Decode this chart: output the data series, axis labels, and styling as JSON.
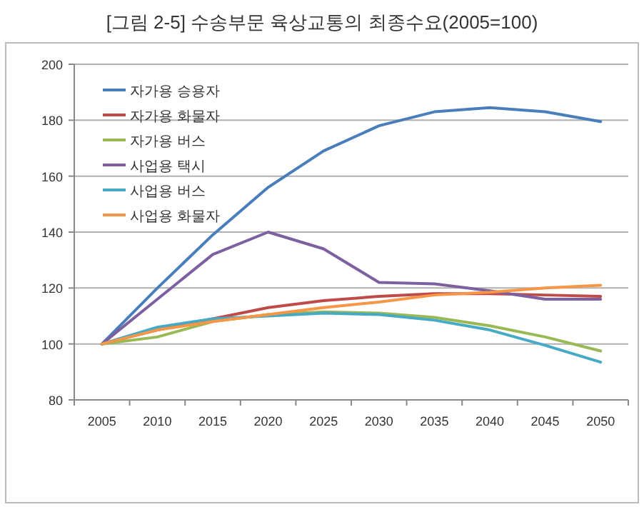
{
  "chart_data": {
    "type": "line",
    "title": "[그림 2-5] 수송부문 육상교통의 최종수요(2005=100)",
    "categories": [
      "2005",
      "2010",
      "2015",
      "2020",
      "2025",
      "2030",
      "2035",
      "2040",
      "2045",
      "2050"
    ],
    "series": [
      {
        "name": "자가용 승용자",
        "color": "#4a7ebb",
        "values": [
          100,
          120,
          139,
          156,
          169,
          178,
          183,
          184.5,
          183,
          179.5
        ]
      },
      {
        "name": "자가용 화물자",
        "color": "#be4b48",
        "values": [
          100,
          105,
          109,
          113,
          115.5,
          117,
          118,
          118,
          117.5,
          117
        ]
      },
      {
        "name": "자가용 버스",
        "color": "#98b954",
        "values": [
          100,
          102.5,
          108,
          110.5,
          111.5,
          111,
          109.5,
          106.5,
          102.5,
          97.5
        ]
      },
      {
        "name": "사업용 택시",
        "color": "#7d60a0",
        "values": [
          100,
          116,
          132,
          140,
          134,
          122,
          121.5,
          119,
          116,
          116
        ]
      },
      {
        "name": "사업용 버스",
        "color": "#46aac5",
        "values": [
          100,
          106,
          109,
          110,
          111,
          110.5,
          108.5,
          105,
          99.5,
          93.5
        ]
      },
      {
        "name": "사업용 화물자",
        "color": "#f79646",
        "values": [
          100,
          105,
          108,
          110.5,
          113,
          115,
          117.5,
          118.5,
          120,
          121
        ]
      }
    ],
    "ylim": [
      80,
      200
    ],
    "yticks": [
      80,
      100,
      120,
      140,
      160,
      180,
      200
    ],
    "grid": "y",
    "legend": "top left"
  }
}
